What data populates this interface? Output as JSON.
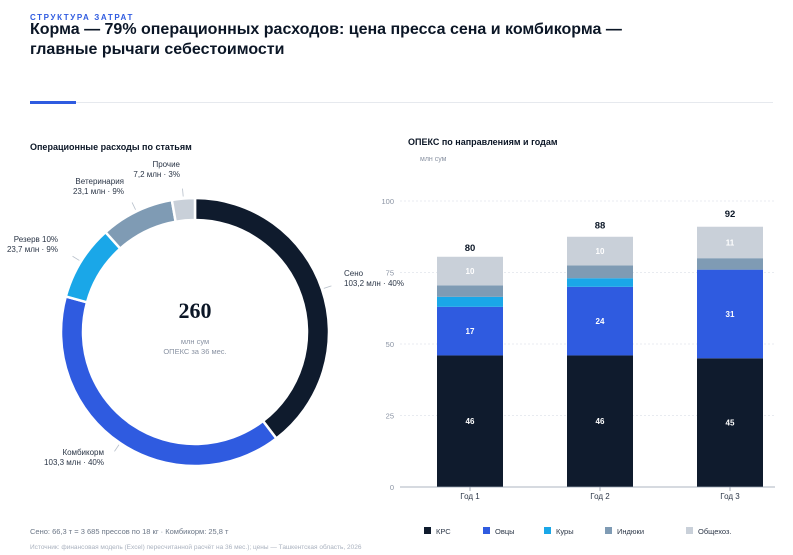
{
  "header": {
    "eyebrow": "СТРУКТУРА ЗАТРАТ",
    "title": "Корма — 79% операционных расходов: цена пресса сена и комбикорма — главные рычаги себестоимости"
  },
  "footer": {
    "note": "Сено: 66,3 т = 3 685 прессов по 18 кг  ·  Комбикорм: 25,8 т",
    "source": "Источник: финансовая модель (Excel) пересчитанной расчёт на 36 мес.); цены — Ташкентская область, 2026"
  },
  "chart_data": [
    {
      "type": "pie",
      "title": "Операционные расходы по статьям",
      "center_value": "260",
      "center_unit": "млн сум",
      "center_caption": "ОПЕКС за 36 мес.",
      "slices": [
        {
          "name": "Сено",
          "label": "Сено",
          "sublabel": "103,2 млн · 40%",
          "value": 103.2,
          "color": "#0f1b2d"
        },
        {
          "name": "Комбикорм",
          "label": "Комбикорм",
          "sublabel": "103,3 млн · 40%",
          "value": 103.3,
          "color": "#2f5be0"
        },
        {
          "name": "Резерв 10%",
          "label": "Резерв 10%",
          "sublabel": "23,7 млн · 9%",
          "value": 23.7,
          "color": "#1aa7e8"
        },
        {
          "name": "Ветеринария",
          "label": "Ветеринария",
          "sublabel": "23,1 млн · 9%",
          "value": 23.1,
          "color": "#7f9bb4"
        },
        {
          "name": "Прочие",
          "label": "Прочие",
          "sublabel": "7,2 млн · 3%",
          "value": 7.2,
          "color": "#c9d0d9"
        }
      ]
    },
    {
      "type": "bar",
      "stacked": true,
      "title": "ОПЕКС по направлениям и годам",
      "ylabel": "млн сум",
      "ylim": [
        0,
        100
      ],
      "yticks": [
        0,
        25,
        50,
        75,
        100
      ],
      "categories": [
        "Год 1",
        "Год 2",
        "Год 3"
      ],
      "totals": [
        80,
        88,
        92
      ],
      "series": [
        {
          "name": "КРС",
          "values": [
            46,
            46,
            45
          ],
          "color": "#0f1b2d",
          "labels": [
            "46",
            "46",
            "45"
          ]
        },
        {
          "name": "Овцы",
          "values": [
            17,
            24,
            31
          ],
          "color": "#2f5be0",
          "labels": [
            "17",
            "24",
            "31"
          ]
        },
        {
          "name": "Куры",
          "values": [
            3.5,
            3,
            0
          ],
          "color": "#1aa7e8",
          "labels": [
            "",
            "",
            ""
          ]
        },
        {
          "name": "Индюки",
          "values": [
            4,
            4.5,
            4
          ],
          "color": "#7f9bb4",
          "labels": [
            "",
            "",
            ""
          ]
        },
        {
          "name": "Общехоз.",
          "values": [
            10,
            10,
            11
          ],
          "color": "#c9d0d9",
          "labels": [
            "10",
            "10",
            "11"
          ]
        }
      ],
      "grid": true,
      "legend": "bottom"
    }
  ]
}
